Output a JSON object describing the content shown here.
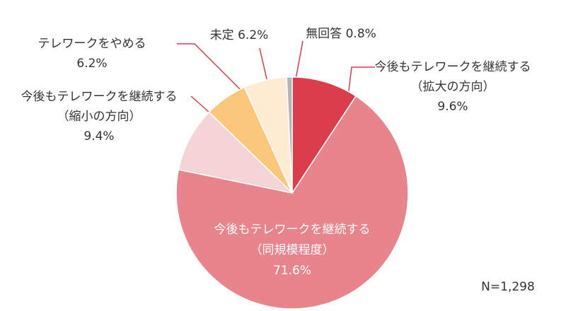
{
  "chart_data": {
    "type": "pie",
    "categories": [
      [
        "今後もテレワークを継続する",
        "（拡大の方向）"
      ],
      [
        "今後もテレワークを継続する",
        "（同規模程度）"
      ],
      [
        "今後もテレワークを継続する",
        "（縮小の方向）"
      ],
      [
        "テレワークをやめる"
      ],
      [
        "未定"
      ],
      [
        "無回答"
      ]
    ],
    "values": [
      9.6,
      71.6,
      9.4,
      6.2,
      6.2,
      0.8
    ],
    "value_labels": [
      "9.6%",
      "71.6%",
      "9.4%",
      "6.2%",
      "6.2%",
      "0.8%"
    ],
    "colors": [
      "#dc3d4a",
      "#e8848b",
      "#f5d4d7",
      "#fbc77a",
      "#feecd2",
      "#b4b4b4"
    ],
    "note": "N=1,298"
  }
}
